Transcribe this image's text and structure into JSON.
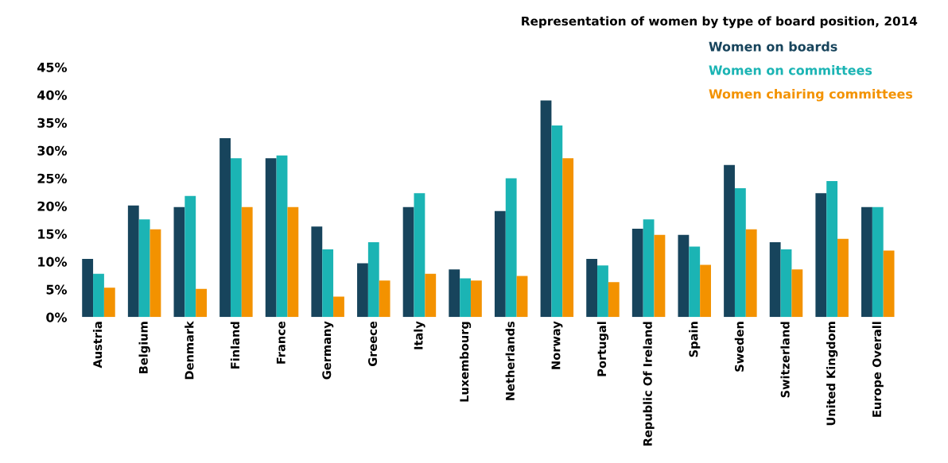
{
  "chart_data": {
    "type": "bar",
    "title": "Representation of women by type of board position, 2014",
    "categories": [
      "Austria",
      "Belgium",
      "Denmark",
      "Finland",
      "France",
      "Germany",
      "Greece",
      "Italy",
      "Luxembourg",
      "Netherlands",
      "Norway",
      "Portugal",
      "Republic Of Ireland",
      "Spain",
      "Sweden",
      "Switzerland",
      "United Kingdom",
      "Europe Overall"
    ],
    "series": [
      {
        "name": "Women on boards",
        "color": "#17445c",
        "values": [
          10.5,
          20.1,
          19.8,
          32.2,
          28.6,
          16.3,
          9.7,
          19.8,
          8.6,
          19.1,
          39.0,
          10.5,
          15.9,
          14.8,
          27.4,
          13.5,
          22.3,
          19.8
        ]
      },
      {
        "name": "Women on committees",
        "color": "#1bb4b4",
        "values": [
          7.8,
          17.6,
          21.8,
          28.6,
          29.1,
          12.2,
          13.5,
          22.3,
          7.0,
          25.0,
          34.5,
          9.3,
          17.6,
          12.7,
          23.2,
          12.2,
          24.5,
          19.8
        ]
      },
      {
        "name": "Women chairing committees",
        "color": "#f39200",
        "values": [
          5.3,
          15.8,
          5.1,
          19.8,
          19.8,
          3.7,
          6.6,
          7.8,
          6.6,
          7.4,
          28.6,
          6.3,
          14.8,
          9.4,
          15.8,
          8.6,
          14.1,
          12.0
        ]
      }
    ],
    "ylim": [
      0,
      45
    ],
    "yticks": [
      {
        "value": 0,
        "label": "0%"
      },
      {
        "value": 5,
        "label": "5%"
      },
      {
        "value": 10,
        "label": "10%"
      },
      {
        "value": 15,
        "label": "15%"
      },
      {
        "value": 20,
        "label": "20%"
      },
      {
        "value": 25,
        "label": "25%"
      },
      {
        "value": 30,
        "label": "30%"
      },
      {
        "value": 35,
        "label": "35%"
      },
      {
        "value": 40,
        "label": "40%"
      },
      {
        "value": 45,
        "label": "45%"
      }
    ],
    "grid": false,
    "legend": "top right"
  }
}
